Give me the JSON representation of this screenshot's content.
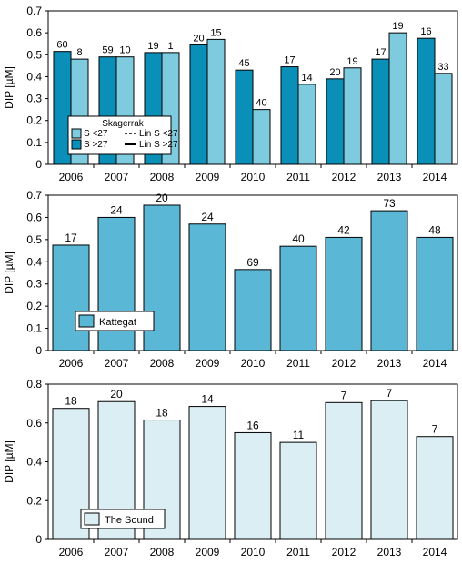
{
  "chart_data": [
    {
      "type": "bar",
      "ylabel": "DIP [µM]",
      "ylim": [
        0,
        0.7
      ],
      "yticks": [
        "0",
        "0.1",
        "0.2",
        "0.3",
        "0.4",
        "0.5",
        "0.6",
        "0.7"
      ],
      "categories": [
        "2006",
        "2007",
        "2008",
        "2009",
        "2010",
        "2011",
        "2012",
        "2013",
        "2014"
      ],
      "series": [
        {
          "name": "S <27",
          "color": "#7ecbe0",
          "values": [
            0.48,
            0.49,
            0.51,
            0.57,
            0.25,
            0.365,
            0.44,
            0.6,
            0.415
          ],
          "labels": [
            "8",
            "10",
            "1",
            "15",
            "40",
            "14",
            "19",
            "19",
            "33"
          ]
        },
        {
          "name": "S >27",
          "color": "#0a8fb8",
          "values": [
            0.515,
            0.49,
            0.51,
            0.545,
            0.43,
            0.445,
            0.39,
            0.48,
            0.575
          ],
          "labels": [
            "60",
            "59",
            "19",
            "20",
            "45",
            "17",
            "20",
            "17",
            "16"
          ]
        }
      ],
      "legend": {
        "title": "Skagerrak",
        "entries": [
          "S <27",
          "S >27",
          "Lin S <27",
          "Lin S >27"
        ],
        "placement": "bottom-left"
      }
    },
    {
      "type": "bar",
      "ylabel": "DIP [µM]",
      "ylim": [
        0,
        0.7
      ],
      "yticks": [
        "0",
        "0.1",
        "0.2",
        "0.3",
        "0.4",
        "0.5",
        "0.6",
        "0.7"
      ],
      "categories": [
        "2006",
        "2007",
        "2008",
        "2009",
        "2010",
        "2011",
        "2012",
        "2013",
        "2014"
      ],
      "series": [
        {
          "name": "Kattegat",
          "color": "#5ab8d6",
          "values": [
            0.475,
            0.6,
            0.655,
            0.57,
            0.365,
            0.47,
            0.51,
            0.63,
            0.51
          ],
          "labels": [
            "17",
            "24",
            "20",
            "24",
            "69",
            "40",
            "42",
            "73",
            "48"
          ]
        }
      ],
      "legend": {
        "entries": [
          "Kattegat"
        ],
        "placement": "bottom-left"
      }
    },
    {
      "type": "bar",
      "ylabel": "DIP [µM]",
      "ylim": [
        0,
        0.8
      ],
      "yticks": [
        "0",
        "0.2",
        "0.4",
        "0.6",
        "0.8"
      ],
      "categories": [
        "2006",
        "2007",
        "2008",
        "2009",
        "2010",
        "2011",
        "2012",
        "2013",
        "2014"
      ],
      "series": [
        {
          "name": "The Sound",
          "color": "#dbeef4",
          "values": [
            0.675,
            0.71,
            0.615,
            0.685,
            0.55,
            0.5,
            0.705,
            0.715,
            0.53
          ],
          "labels": [
            "18",
            "20",
            "18",
            "14",
            "16",
            "11",
            "7",
            "7",
            "7"
          ]
        }
      ],
      "legend": {
        "entries": [
          "The Sound"
        ],
        "placement": "bottom-left"
      }
    }
  ]
}
